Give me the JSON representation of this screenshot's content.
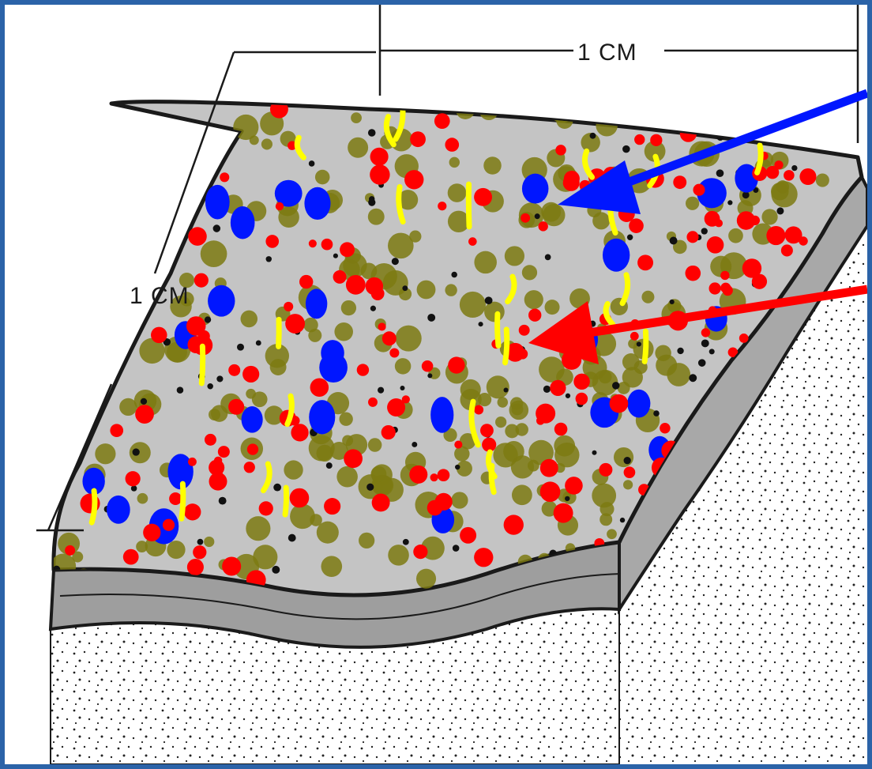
{
  "diagram": {
    "top_dimension_label": "1 CM",
    "side_dimension_label": "1 CM"
  },
  "colors": {
    "border": "#2b63a8",
    "slab_fill": "#bdbdbd",
    "slab_edge": "#8f8f8f",
    "outline": "#1a1a1a",
    "red_particle": "#ff0000",
    "blue_particle": "#0016ff",
    "olive_particle": "#7d7a12",
    "yellow_particle": "#ffff00",
    "arrow_blue": "#0016ff",
    "arrow_red": "#ff0000"
  }
}
